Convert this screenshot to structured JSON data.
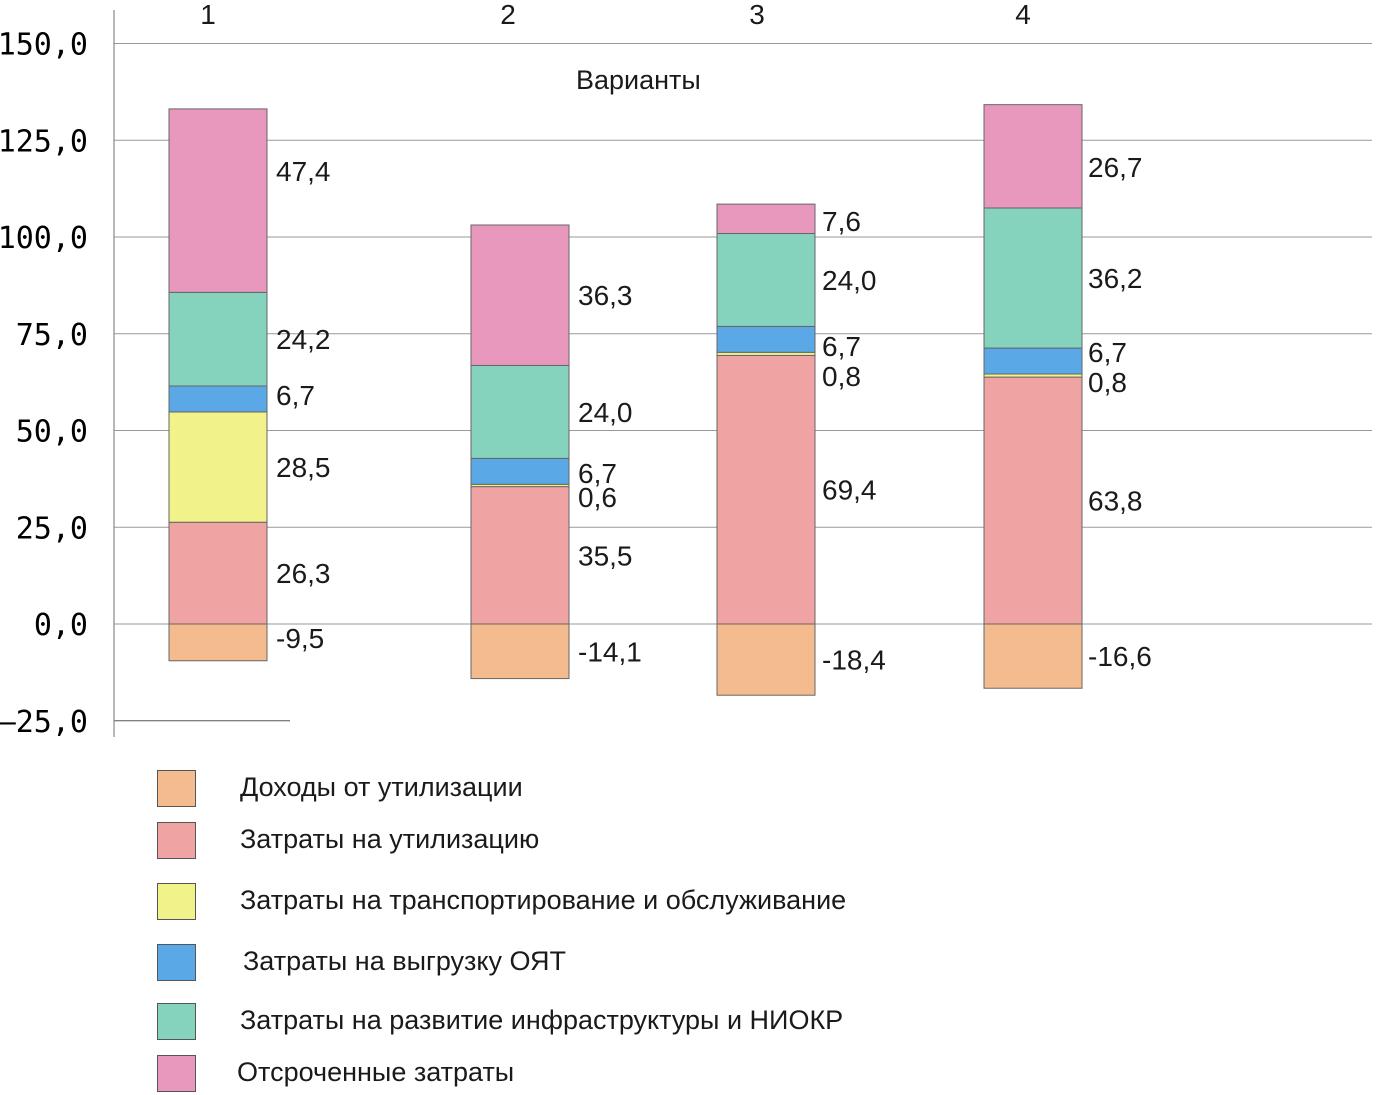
{
  "chart_data": {
    "type": "bar",
    "stacked": true,
    "categories": [
      "1",
      "2",
      "3",
      "4"
    ],
    "xlabel": "Варианты",
    "ylim": [
      -25,
      150
    ],
    "yticks": [
      150.0,
      125.0,
      100.0,
      75.0,
      50.0,
      25.0,
      0.0,
      -25.0
    ],
    "ytick_labels": [
      "150,0",
      "125,0",
      "100,0",
      "75,0",
      "50,0",
      "25,0",
      "0,0",
      "–25,0"
    ],
    "grid": true,
    "legend_position": "bottom-left",
    "series": [
      {
        "name": "Доходы от утилизации",
        "color": "#f4bc8e",
        "values": [
          -9.5,
          -14.1,
          -18.4,
          -16.6
        ],
        "labels": [
          "-9,5",
          "-14,1",
          "-18,4",
          "-16,6"
        ]
      },
      {
        "name": "Затраты на утилизацию",
        "color": "#f0a3a3",
        "values": [
          26.3,
          35.5,
          69.4,
          63.8
        ],
        "labels": [
          "26,3",
          "35,5",
          "69,4",
          "63,8"
        ]
      },
      {
        "name": "Затраты на транспортирование и обслуживание",
        "color": "#f2f28a",
        "values": [
          28.5,
          0.6,
          0.8,
          0.8
        ],
        "labels": [
          "28,5",
          "0,6",
          "0,8",
          "0,8"
        ]
      },
      {
        "name": "Затраты на выгрузку ОЯТ",
        "color": "#5aa9e6",
        "values": [
          6.7,
          6.7,
          6.7,
          6.7
        ],
        "labels": [
          "6,7",
          "6,7",
          "6,7",
          "6,7"
        ]
      },
      {
        "name": "Затраты на развитие инфраструктуры и НИОКР",
        "color": "#86d3bd",
        "values": [
          24.2,
          24.0,
          24.0,
          36.2
        ],
        "labels": [
          "24,2",
          "24,0",
          "24,0",
          "36,2"
        ]
      },
      {
        "name": "Отсроченные затраты",
        "color": "#e897bd",
        "values": [
          47.4,
          36.3,
          7.6,
          26.7
        ],
        "labels": [
          "47,4",
          "36,3",
          "7,6",
          "26,7"
        ]
      }
    ]
  }
}
